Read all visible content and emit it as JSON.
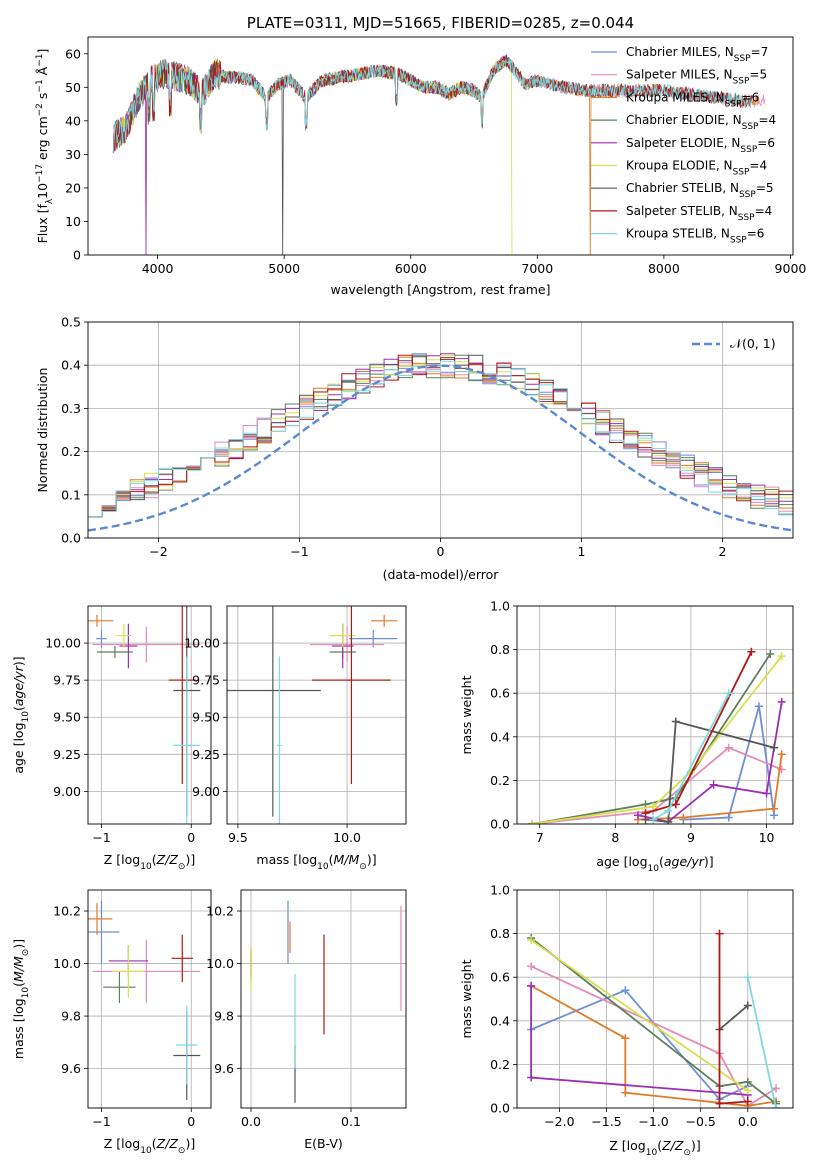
{
  "colors": {
    "Chabrier MILES": "#6d8fd8",
    "Salpeter MILES": "#e68ab8",
    "Kroupa MILES": "#e07b28",
    "Chabrier ELODIE": "#5e7e5e",
    "Salpeter ELODIE": "#9b2fb0",
    "Kroupa ELODIE": "#d6e04a",
    "Chabrier STELIB": "#555555",
    "Salpeter STELIB": "#b01818",
    "Kroupa STELIB": "#7fd9e0",
    "normal": "#5b8ad0"
  },
  "chart_data": [
    {
      "type": "line",
      "title": "PLATE=0311, MJD=51665, FIBERID=0285, z=0.044",
      "xlabel": "wavelength [Angstrom, rest frame]",
      "ylabel": "Flux [fλ10⁻¹⁷ erg cm⁻² s⁻¹ Å⁻¹]",
      "xlim": [
        3450,
        9020
      ],
      "ylim": [
        0,
        65
      ],
      "xticks": [
        "4000",
        "5000",
        "6000",
        "7000",
        "8000",
        "9000"
      ],
      "yticks": [
        "0",
        "10",
        "20",
        "30",
        "40",
        "50",
        "60"
      ],
      "legend_position": "right",
      "series": [
        {
          "key": "Chabrier MILES",
          "base": "Chabrier MILES, N",
          "sub": "SSP",
          "tail": "=7",
          "start": 3650,
          "end": 8500,
          "dip": null
        },
        {
          "key": "Salpeter MILES",
          "base": "Salpeter MILES, N",
          "sub": "SSP",
          "tail": "=5",
          "start": 3650,
          "end": 8800,
          "dip": null
        },
        {
          "key": "Kroupa MILES",
          "base": "Kroupa MILES, N",
          "sub": "SSP",
          "tail": "=6",
          "start": 3650,
          "end": 8750,
          "dip": 7420
        },
        {
          "key": "Chabrier ELODIE",
          "base": "Chabrier ELODIE, N",
          "sub": "SSP",
          "tail": "=4",
          "start": 3650,
          "end": 6800,
          "dip": null
        },
        {
          "key": "Salpeter ELODIE",
          "base": "Salpeter ELODIE, N",
          "sub": "SSP",
          "tail": "=6",
          "start": 3650,
          "end": 6800,
          "dip": 3910
        },
        {
          "key": "Kroupa ELODIE",
          "base": "Kroupa ELODIE, N",
          "sub": "SSP",
          "tail": "=4",
          "start": 3650,
          "end": 6800,
          "dip": 6800
        },
        {
          "key": "Chabrier STELIB",
          "base": "Chabrier STELIB, N",
          "sub": "SSP",
          "tail": "=5",
          "start": 3650,
          "end": 8700,
          "dip": 4990
        },
        {
          "key": "Salpeter STELIB",
          "base": "Salpeter STELIB, N",
          "sub": "SSP",
          "tail": "=4",
          "start": 3650,
          "end": 8700,
          "dip": null
        },
        {
          "key": "Kroupa STELIB",
          "base": "Kroupa STELIB, N",
          "sub": "SSP",
          "tail": "=6",
          "start": 3650,
          "end": 8700,
          "dip": null
        }
      ],
      "continuum": [
        [
          3650,
          35
        ],
        [
          3750,
          38
        ],
        [
          3850,
          47
        ],
        [
          3950,
          52
        ],
        [
          4050,
          54
        ],
        [
          4150,
          53
        ],
        [
          4250,
          52
        ],
        [
          4350,
          48
        ],
        [
          4450,
          54
        ],
        [
          4550,
          53
        ],
        [
          4650,
          53
        ],
        [
          4750,
          52
        ],
        [
          4860,
          47
        ],
        [
          4950,
          51
        ],
        [
          5050,
          52
        ],
        [
          5170,
          47
        ],
        [
          5300,
          52
        ],
        [
          5450,
          53
        ],
        [
          5600,
          54
        ],
        [
          5750,
          55
        ],
        [
          5900,
          54
        ],
        [
          6000,
          52
        ],
        [
          6100,
          50
        ],
        [
          6200,
          50
        ],
        [
          6300,
          48
        ],
        [
          6400,
          50
        ],
        [
          6500,
          49
        ],
        [
          6563,
          47
        ],
        [
          6650,
          55
        ],
        [
          6750,
          58
        ],
        [
          6800,
          56
        ],
        [
          6900,
          51
        ],
        [
          7000,
          52
        ],
        [
          7200,
          50
        ],
        [
          7400,
          49
        ],
        [
          7600,
          49
        ],
        [
          7800,
          49
        ],
        [
          8000,
          49
        ],
        [
          8200,
          48
        ],
        [
          8400,
          47
        ],
        [
          8600,
          46
        ],
        [
          8800,
          46
        ]
      ]
    },
    {
      "type": "histogram",
      "xlabel": "(data-model)/error",
      "ylabel": "Normed distribution",
      "xlim": [
        -2.5,
        2.5
      ],
      "ylim": [
        0,
        0.5
      ],
      "xticks": [
        "−2",
        "−1",
        "0",
        "1",
        "2"
      ],
      "yticks": [
        "0.0",
        "0.1",
        "0.2",
        "0.3",
        "0.4",
        "0.5"
      ],
      "bin_width": 0.1,
      "legend_label": "𝒩(0, 1)",
      "legend_position": "top-right"
    },
    {
      "type": "scatter",
      "subtype": "errorbar",
      "xlabel": "Z [log10(Z/Z⊙)]",
      "ylabel": "age [log10(age/yr)]",
      "xlim": [
        -1.15,
        0.22
      ],
      "ylim": [
        8.78,
        10.25
      ],
      "xticks": [
        "−1",
        "0"
      ],
      "yticks": [
        "9.00",
        "9.25",
        "9.50",
        "9.75",
        "10.00"
      ],
      "points": [
        {
          "s": "Chabrier MILES",
          "x": -1.0,
          "xe": 0.06,
          "y": 10.03,
          "ye": 0.06
        },
        {
          "s": "Salpeter MILES",
          "x": -0.5,
          "xe": 0.6,
          "y": 9.99,
          "ye": 0.12
        },
        {
          "s": "Kroupa MILES",
          "x": -1.05,
          "xe": 0.18,
          "y": 10.15,
          "ye": 0.04
        },
        {
          "s": "Chabrier ELODIE",
          "x": -0.85,
          "xe": 0.2,
          "y": 9.94,
          "ye": 0.04
        },
        {
          "s": "Salpeter ELODIE",
          "x": -0.7,
          "xe": 0.1,
          "y": 9.98,
          "ye": 0.15
        },
        {
          "s": "Kroupa ELODIE",
          "x": -0.75,
          "xe": 0.08,
          "y": 10.05,
          "ye": 0.08
        },
        {
          "s": "Chabrier STELIB",
          "x": -0.05,
          "xe": 0.15,
          "y": 9.68,
          "ye": 0.85
        },
        {
          "s": "Salpeter STELIB",
          "x": -0.1,
          "xe": 0.15,
          "y": 9.75,
          "ye": 0.7
        },
        {
          "s": "Kroupa STELIB",
          "x": -0.05,
          "xe": 0.15,
          "y": 9.31,
          "ye": 0.6
        }
      ]
    },
    {
      "type": "scatter",
      "subtype": "errorbar",
      "xlabel": "mass [log10(M/M⊙)]",
      "ylabel": "",
      "xlim": [
        9.45,
        10.27
      ],
      "ylim": [
        8.78,
        10.25
      ],
      "xticks": [
        "9.5",
        "10.0"
      ],
      "yticks": [
        "9.00",
        "9.25",
        "9.50",
        "9.75",
        "10.00"
      ],
      "points": [
        {
          "s": "Chabrier MILES",
          "x": 10.12,
          "xe": 0.11,
          "y": 10.03,
          "ye": 0.06
        },
        {
          "s": "Salpeter MILES",
          "x": 10.0,
          "xe": 0.17,
          "y": 9.99,
          "ye": 0.12
        },
        {
          "s": "Kroupa MILES",
          "x": 10.17,
          "xe": 0.06,
          "y": 10.15,
          "ye": 0.04
        },
        {
          "s": "Chabrier ELODIE",
          "x": 9.98,
          "xe": 0.06,
          "y": 9.94,
          "ye": 0.04
        },
        {
          "s": "Salpeter ELODIE",
          "x": 9.98,
          "xe": 0.05,
          "y": 9.98,
          "ye": 0.15
        },
        {
          "s": "Kroupa ELODIE",
          "x": 9.98,
          "xe": 0.06,
          "y": 10.05,
          "ye": 0.08
        },
        {
          "s": "Chabrier STELIB",
          "x": 9.66,
          "xe": 0.22,
          "y": 9.68,
          "ye": 0.85
        },
        {
          "s": "Salpeter STELIB",
          "x": 10.02,
          "xe": 0.18,
          "y": 9.75,
          "ye": 0.7
        },
        {
          "s": "Kroupa STELIB",
          "x": 9.69,
          "xe": 0.01,
          "y": 9.31,
          "ye": 0.6
        }
      ]
    },
    {
      "type": "line",
      "xlabel": "age [log10(age/yr)]",
      "ylabel": "mass weight",
      "xlim": [
        6.7,
        10.35
      ],
      "ylim": [
        0,
        1.0
      ],
      "xticks": [
        "7",
        "8",
        "9",
        "10"
      ],
      "yticks": [
        "0.0",
        "0.2",
        "0.4",
        "0.6",
        "0.8",
        "1.0"
      ],
      "series": [
        {
          "s": "Chabrier MILES",
          "pts": [
            [
              8.9,
              0.02
            ],
            [
              9.5,
              0.03
            ],
            [
              9.9,
              0.54
            ],
            [
              10.1,
              0.04
            ]
          ]
        },
        {
          "s": "Salpeter MILES",
          "pts": [
            [
              6.9,
              0.0
            ],
            [
              8.5,
              0.06
            ],
            [
              9.5,
              0.35
            ],
            [
              10.2,
              0.25
            ]
          ]
        },
        {
          "s": "Kroupa MILES",
          "pts": [
            [
              8.3,
              0.02
            ],
            [
              8.9,
              0.03
            ],
            [
              10.1,
              0.07
            ],
            [
              10.2,
              0.32
            ]
          ]
        },
        {
          "s": "Chabrier ELODIE",
          "pts": [
            [
              6.9,
              0.0
            ],
            [
              8.4,
              0.09
            ],
            [
              8.8,
              0.12
            ],
            [
              10.05,
              0.78
            ]
          ]
        },
        {
          "s": "Salpeter ELODIE",
          "pts": [
            [
              8.3,
              0.04
            ],
            [
              8.7,
              0.01
            ],
            [
              9.3,
              0.18
            ],
            [
              10.0,
              0.14
            ],
            [
              10.2,
              0.56
            ]
          ]
        },
        {
          "s": "Kroupa ELODIE",
          "pts": [
            [
              6.9,
              0.0
            ],
            [
              8.5,
              0.08
            ],
            [
              9.0,
              0.24
            ],
            [
              10.2,
              0.77
            ]
          ]
        },
        {
          "s": "Chabrier STELIB",
          "pts": [
            [
              8.4,
              0.02
            ],
            [
              8.7,
              0.01
            ],
            [
              8.8,
              0.47
            ],
            [
              10.1,
              0.35
            ]
          ]
        },
        {
          "s": "Salpeter STELIB",
          "pts": [
            [
              8.4,
              0.05
            ],
            [
              8.8,
              0.09
            ],
            [
              9.8,
              0.79
            ]
          ]
        },
        {
          "s": "Kroupa STELIB",
          "pts": [
            [
              8.5,
              0.02
            ],
            [
              8.7,
              0.06
            ],
            [
              9.5,
              0.6
            ]
          ]
        }
      ]
    },
    {
      "type": "scatter",
      "subtype": "errorbar",
      "xlabel": "Z [log10(Z/Z⊙)]",
      "ylabel": "mass [log10(M/M⊙)]",
      "xlim": [
        -1.15,
        0.22
      ],
      "ylim": [
        9.45,
        10.28
      ],
      "xticks": [
        "−1",
        "0"
      ],
      "yticks": [
        "9.6",
        "9.8",
        "10.0",
        "10.2"
      ],
      "points": [
        {
          "s": "Chabrier MILES",
          "x": -1.0,
          "xe": 0.2,
          "y": 10.12,
          "ye": 0.12
        },
        {
          "s": "Salpeter MILES",
          "x": -0.5,
          "xe": 0.6,
          "y": 9.97,
          "ye": 0.12
        },
        {
          "s": "Kroupa MILES",
          "x": -1.05,
          "xe": 0.17,
          "y": 10.17,
          "ye": 0.06
        },
        {
          "s": "Chabrier ELODIE",
          "x": -0.8,
          "xe": 0.18,
          "y": 9.91,
          "ye": 0.06
        },
        {
          "s": "Salpeter ELODIE",
          "x": -0.7,
          "xe": 0.22,
          "y": 10.01,
          "ye": 0.06
        },
        {
          "s": "Kroupa ELODIE",
          "x": -0.7,
          "xe": 0.18,
          "y": 9.97,
          "ye": 0.1
        },
        {
          "s": "Chabrier STELIB",
          "x": -0.05,
          "xe": 0.15,
          "y": 9.65,
          "ye": 0.17
        },
        {
          "s": "Salpeter STELIB",
          "x": -0.1,
          "xe": 0.12,
          "y": 10.02,
          "ye": 0.09
        },
        {
          "s": "Kroupa STELIB",
          "x": -0.05,
          "xe": 0.12,
          "y": 9.69,
          "ye": 0.15
        }
      ]
    },
    {
      "type": "scatter",
      "subtype": "errorbar",
      "xlabel": "E(B-V)",
      "ylabel": "",
      "xlim": [
        -0.01,
        0.155
      ],
      "ylim": [
        9.45,
        10.28
      ],
      "xticks": [
        "0.0",
        "0.1"
      ],
      "yticks": [
        "9.6",
        "9.8",
        "10.0",
        "10.2"
      ],
      "points": [
        {
          "s": "Chabrier MILES",
          "x": 0.037,
          "xe": 0.0,
          "y": 10.12,
          "ye": 0.12
        },
        {
          "s": "Salpeter MILES",
          "x": 0.15,
          "xe": 0.0,
          "y": 10.02,
          "ye": 0.2
        },
        {
          "s": "Kroupa MILES",
          "x": 0.039,
          "xe": 0.0,
          "y": 10.1,
          "ye": 0.06
        },
        {
          "s": "Chabrier ELODIE",
          "x": 0.0,
          "xe": 0.0,
          "y": 10.0,
          "ye": 0.06
        },
        {
          "s": "Salpeter ELODIE",
          "x": 0.0,
          "xe": 0.0,
          "y": 10.0,
          "ye": 0.05
        },
        {
          "s": "Kroupa ELODIE",
          "x": 0.0,
          "xe": 0.0,
          "y": 9.98,
          "ye": 0.08
        },
        {
          "s": "Chabrier STELIB",
          "x": 0.044,
          "xe": 0.0,
          "y": 9.58,
          "ye": 0.11
        },
        {
          "s": "Salpeter STELIB",
          "x": 0.073,
          "xe": 0.0,
          "y": 9.92,
          "ye": 0.19
        },
        {
          "s": "Kroupa STELIB",
          "x": 0.044,
          "xe": 0.0,
          "y": 9.78,
          "ye": 0.18
        }
      ]
    },
    {
      "type": "line",
      "xlabel": "Z [log10(Z/Z⊙)]",
      "ylabel": "mass weight",
      "xlim": [
        -2.45,
        0.48
      ],
      "ylim": [
        0,
        1.0
      ],
      "xticks": [
        "−2.0",
        "−1.5",
        "−1.0",
        "−0.5",
        "0.0"
      ],
      "yticks": [
        "0.0",
        "0.2",
        "0.4",
        "0.6",
        "0.8",
        "1.0"
      ],
      "series": [
        {
          "s": "Chabrier MILES",
          "pts": [
            [
              -2.3,
              0.36
            ],
            [
              -1.3,
              0.54
            ],
            [
              -0.3,
              0.04
            ],
            [
              0.0,
              0.1
            ]
          ]
        },
        {
          "s": "Salpeter MILES",
          "pts": [
            [
              -2.3,
              0.65
            ],
            [
              -0.3,
              0.25
            ],
            [
              0.0,
              0.01
            ],
            [
              0.3,
              0.09
            ]
          ]
        },
        {
          "s": "Kroupa MILES",
          "pts": [
            [
              -2.3,
              0.56
            ],
            [
              -1.3,
              0.32
            ],
            [
              -1.3,
              0.07
            ],
            [
              0.0,
              0.01
            ],
            [
              0.3,
              0.03
            ]
          ]
        },
        {
          "s": "Chabrier ELODIE",
          "pts": [
            [
              -2.3,
              0.78
            ],
            [
              -0.3,
              0.1
            ],
            [
              0.0,
              0.12
            ],
            [
              0.3,
              0.02
            ]
          ]
        },
        {
          "s": "Salpeter ELODIE",
          "pts": [
            [
              -2.3,
              0.56
            ],
            [
              -2.3,
              0.14
            ],
            [
              0.0,
              0.06
            ]
          ]
        },
        {
          "s": "Kroupa ELODIE",
          "pts": [
            [
              -2.3,
              0.77
            ],
            [
              0.0,
              0.08
            ]
          ]
        },
        {
          "s": "Chabrier STELIB",
          "pts": [
            [
              -0.3,
              0.36
            ],
            [
              0.0,
              0.47
            ]
          ]
        },
        {
          "s": "Salpeter STELIB",
          "pts": [
            [
              -0.3,
              0.8
            ],
            [
              -0.3,
              0.02
            ],
            [
              0.0,
              0.03
            ]
          ]
        },
        {
          "s": "Kroupa STELIB",
          "pts": [
            [
              0.0,
              0.6
            ],
            [
              0.3,
              0.0
            ]
          ]
        }
      ]
    }
  ]
}
